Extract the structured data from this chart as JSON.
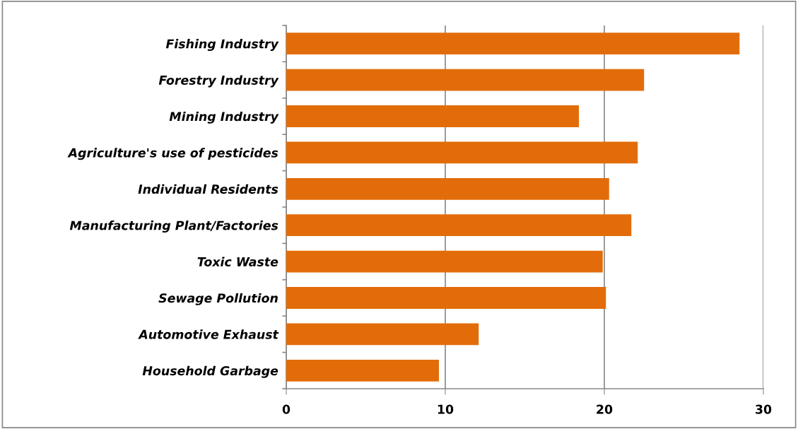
{
  "chart_data": {
    "type": "bar",
    "orientation": "horizontal",
    "categories": [
      "Fishing Industry",
      "Forestry Industry",
      "Mining Industry",
      "Agriculture's use of pesticides",
      "Individual Residents",
      "Manufacturing Plant/Factories",
      "Toxic Waste",
      "Sewage Pollution",
      "Automotive Exhaust",
      "Household Garbage"
    ],
    "values": [
      28.5,
      22.5,
      18.4,
      22.1,
      20.3,
      21.7,
      19.9,
      20.1,
      12.1,
      9.6
    ],
    "color": "#e36c0a",
    "xlim": [
      0,
      30
    ],
    "xticks": [
      0,
      10,
      20,
      30
    ],
    "grid": "x",
    "legend": false
  }
}
